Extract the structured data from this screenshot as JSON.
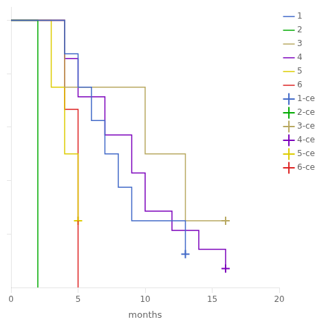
{
  "chart_data": {
    "type": "line",
    "xlabel": "months",
    "xlim": [
      0,
      20
    ],
    "xticks": [
      0,
      5,
      10,
      15,
      20
    ],
    "ylim": [
      0,
      1.05
    ],
    "yticks": [
      0.2,
      0.4,
      0.6,
      0.8,
      1.0
    ],
    "tick_labels": "x",
    "grid": false,
    "legend": "right",
    "series": [
      {
        "name": "1",
        "type": "line",
        "color": "#4169c8",
        "x": [
          0,
          4,
          4,
          5,
          5,
          6,
          6,
          7,
          7,
          8,
          8,
          9,
          9,
          13,
          13
        ],
        "values": [
          1.0,
          1.0,
          0.875,
          0.875,
          0.75,
          0.75,
          0.625,
          0.625,
          0.5,
          0.5,
          0.375,
          0.375,
          0.25,
          0.25,
          0.125
        ]
      },
      {
        "name": "2",
        "type": "line",
        "color": "#00aa00",
        "x": [
          0,
          2,
          2
        ],
        "values": [
          1.0,
          1.0,
          0.0
        ]
      },
      {
        "name": "3",
        "type": "line",
        "color": "#b8a860",
        "x": [
          0,
          4,
          4,
          10,
          10,
          13,
          13,
          16
        ],
        "values": [
          1.0,
          1.0,
          0.75,
          0.75,
          0.5,
          0.5,
          0.25,
          0.25
        ]
      },
      {
        "name": "4",
        "type": "line",
        "color": "#7b00bb",
        "x": [
          0,
          4,
          4,
          5,
          5,
          7,
          7,
          9,
          9,
          10,
          10,
          12,
          12,
          14,
          14,
          16,
          16
        ],
        "values": [
          1.0,
          1.0,
          0.857,
          0.857,
          0.714,
          0.714,
          0.571,
          0.571,
          0.429,
          0.429,
          0.286,
          0.286,
          0.214,
          0.214,
          0.143,
          0.143,
          0.071
        ]
      },
      {
        "name": "5",
        "type": "line",
        "color": "#ddcc00",
        "x": [
          0,
          3,
          3,
          4,
          4,
          5,
          5
        ],
        "values": [
          1.0,
          1.0,
          0.75,
          0.75,
          0.5,
          0.5,
          0.25
        ]
      },
      {
        "name": "6",
        "type": "line",
        "color": "#dd2222",
        "x": [
          0,
          4,
          4,
          5,
          5,
          5
        ],
        "values": [
          1.0,
          1.0,
          0.667,
          0.667,
          0.333,
          0.0
        ]
      },
      {
        "name": "1-ce",
        "type": "scatter",
        "marker": "cross",
        "color": "#4169c8",
        "x": [
          13
        ],
        "values": [
          0.125
        ]
      },
      {
        "name": "2-ce",
        "type": "scatter",
        "marker": "cross",
        "color": "#00aa00",
        "x": [],
        "values": []
      },
      {
        "name": "3-ce",
        "type": "scatter",
        "marker": "cross",
        "color": "#b8a860",
        "x": [
          16
        ],
        "values": [
          0.25
        ]
      },
      {
        "name": "4-ce",
        "type": "scatter",
        "marker": "cross",
        "color": "#7b00bb",
        "x": [
          16
        ],
        "values": [
          0.071
        ]
      },
      {
        "name": "5-ce",
        "type": "scatter",
        "marker": "cross",
        "color": "#ddcc00",
        "x": [
          5
        ],
        "values": [
          0.25
        ]
      },
      {
        "name": "6-ce",
        "type": "scatter",
        "marker": "cross",
        "color": "#dd2222",
        "x": [],
        "values": []
      }
    ]
  }
}
